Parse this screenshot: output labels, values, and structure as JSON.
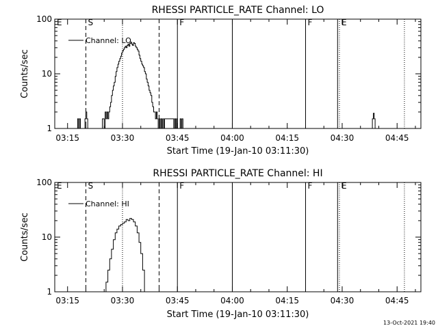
{
  "footer": {
    "timestamp": "13-Oct-2021 19:40"
  },
  "chart_data": [
    {
      "type": "line",
      "title": "RHESSI PARTICLE_RATE Channel: LO",
      "xlabel": "Start Time (19-Jan-10 03:11:30)",
      "ylabel": "Counts/sec",
      "yscale": "log",
      "ylim": [
        1,
        100
      ],
      "xlim": [
        "03:11:30",
        "04:51:30"
      ],
      "x_ticks": [
        "03:15",
        "03:30",
        "03:45",
        "04:00",
        "04:15",
        "04:30",
        "04:45"
      ],
      "y_ticks": [
        "1",
        "10",
        "100"
      ],
      "legend": {
        "label": "Channel: LO",
        "position": "top-left"
      },
      "series": [
        {
          "name": "Channel: LO",
          "x": [
            "03:17:30",
            "03:17:45",
            "03:18:00",
            "03:18:15",
            "03:18:30",
            "03:18:45",
            "03:19:00",
            "03:19:15",
            "03:19:30",
            "03:19:45",
            "03:20:00",
            "03:20:15",
            "03:20:30",
            "03:21:00",
            "03:21:30",
            "03:21:45",
            "03:22:00",
            "03:22:15",
            "03:22:30",
            "03:22:45",
            "03:23:00",
            "03:23:15",
            "03:23:30",
            "03:24:00",
            "03:24:30",
            "03:25:00",
            "03:25:15",
            "03:25:30",
            "03:25:45",
            "03:26:00",
            "03:26:15",
            "03:26:30",
            "03:26:45",
            "03:27:00",
            "03:27:15",
            "03:27:30",
            "03:27:45",
            "03:28:00",
            "03:28:15",
            "03:28:30",
            "03:28:45",
            "03:29:00",
            "03:29:15",
            "03:29:30",
            "03:29:45",
            "03:30:00",
            "03:30:15",
            "03:30:30",
            "03:30:45",
            "03:31:00",
            "03:31:15",
            "03:31:30",
            "03:31:45",
            "03:32:00",
            "03:32:15",
            "03:32:30",
            "03:32:45",
            "03:33:00",
            "03:33:15",
            "03:33:30",
            "03:33:45",
            "03:34:00",
            "03:34:15",
            "03:34:30",
            "03:34:45",
            "03:35:00",
            "03:35:15",
            "03:35:30",
            "03:35:45",
            "03:36:00",
            "03:36:15",
            "03:36:30",
            "03:36:45",
            "03:37:00",
            "03:37:15",
            "03:37:30",
            "03:37:45",
            "03:38:00",
            "03:38:15",
            "03:38:30",
            "03:38:45",
            "03:39:00",
            "03:39:15",
            "03:39:30",
            "03:39:45",
            "03:40:00",
            "03:40:15",
            "03:40:30",
            "03:40:45",
            "03:41:00",
            "03:41:15",
            "03:41:30",
            "03:44:00",
            "03:44:15",
            "03:44:30",
            "03:44:45",
            "03:45:00",
            "03:45:15",
            "03:45:30",
            "03:45:45",
            "03:46:00",
            "03:46:15",
            "03:46:30",
            "03:46:45",
            "03:47:00",
            "03:47:15",
            "04:38:00",
            "04:38:15",
            "04:38:30",
            "04:38:45",
            "04:39:00"
          ],
          "values": [
            1,
            1.5,
            1,
            1.5,
            1,
            1,
            1,
            1,
            1,
            1.5,
            2,
            1.5,
            1,
            1,
            1,
            1,
            1,
            1,
            1,
            1,
            1,
            1,
            1,
            1,
            1.5,
            1,
            2,
            1.5,
            2,
            1.5,
            2,
            2.5,
            3,
            4,
            5,
            6,
            7,
            9,
            11,
            13,
            15,
            17,
            19,
            21,
            24,
            26,
            28,
            30,
            32,
            30,
            33,
            35,
            32,
            36,
            38,
            35,
            33,
            37,
            36,
            32,
            30,
            28,
            26,
            22,
            19,
            17,
            15,
            14,
            13,
            11,
            10,
            8,
            7,
            6,
            5,
            4.5,
            4,
            3,
            2.5,
            2,
            2,
            1.5,
            2,
            1.5,
            1,
            1.5,
            1,
            1.5,
            1,
            1.5,
            1,
            1.5,
            1,
            1.5,
            1,
            1.5,
            1,
            1,
            1,
            1.5,
            1,
            1.5,
            1,
            1,
            1,
            1,
            1,
            1.5,
            1.9,
            1.5,
            1
          ]
        }
      ],
      "markers": [
        {
          "label": "E",
          "time": "03:11:30",
          "style": "solid"
        },
        {
          "label": "S",
          "time": "03:20:00",
          "style": "dashed"
        },
        {
          "label": "",
          "time": "03:30:00",
          "style": "dotted"
        },
        {
          "label": "",
          "time": "03:40:00",
          "style": "dashed"
        },
        {
          "label": "F",
          "time": "03:45:00",
          "style": "solid"
        },
        {
          "label": "",
          "time": "04:00:00",
          "style": "solid"
        },
        {
          "label": "F",
          "time": "04:20:00",
          "style": "solid"
        },
        {
          "label": "",
          "time": "04:28:45",
          "style": "solid"
        },
        {
          "label": "E",
          "time": "04:29:15",
          "style": "dotted"
        },
        {
          "label": "",
          "time": "04:47:00",
          "style": "dotted"
        }
      ]
    },
    {
      "type": "line",
      "title": "RHESSI PARTICLE_RATE Channel: HI",
      "xlabel": "Start Time (19-Jan-10 03:11:30)",
      "ylabel": "Counts/sec",
      "yscale": "log",
      "ylim": [
        1,
        100
      ],
      "xlim": [
        "03:11:30",
        "04:51:30"
      ],
      "x_ticks": [
        "03:15",
        "03:30",
        "03:45",
        "04:00",
        "04:15",
        "04:30",
        "04:45"
      ],
      "y_ticks": [
        "1",
        "10",
        "100"
      ],
      "legend": {
        "label": "Channel: HI",
        "position": "top-left"
      },
      "series": [
        {
          "name": "Channel: HI",
          "x": [
            "03:25:00",
            "03:25:30",
            "03:26:00",
            "03:26:30",
            "03:27:00",
            "03:27:30",
            "03:28:00",
            "03:28:30",
            "03:29:00",
            "03:29:30",
            "03:30:00",
            "03:30:30",
            "03:31:00",
            "03:31:30",
            "03:32:00",
            "03:32:30",
            "03:33:00",
            "03:33:30",
            "03:34:00",
            "03:34:30",
            "03:35:00",
            "03:35:30",
            "03:36:00"
          ],
          "values": [
            1,
            1.5,
            2.5,
            4,
            6,
            9,
            12,
            14,
            16,
            17,
            18,
            19,
            21,
            20,
            22,
            21,
            19,
            16,
            12,
            8,
            5,
            2.5,
            1
          ]
        }
      ],
      "markers": [
        {
          "label": "E",
          "time": "03:11:30",
          "style": "solid"
        },
        {
          "label": "S",
          "time": "03:20:00",
          "style": "dashed"
        },
        {
          "label": "",
          "time": "03:30:00",
          "style": "dotted"
        },
        {
          "label": "",
          "time": "03:40:00",
          "style": "dashed"
        },
        {
          "label": "F",
          "time": "03:45:00",
          "style": "solid"
        },
        {
          "label": "",
          "time": "04:00:00",
          "style": "solid"
        },
        {
          "label": "F",
          "time": "04:20:00",
          "style": "solid"
        },
        {
          "label": "",
          "time": "04:28:45",
          "style": "solid"
        },
        {
          "label": "E",
          "time": "04:29:15",
          "style": "dotted"
        },
        {
          "label": "",
          "time": "04:47:00",
          "style": "dotted"
        }
      ]
    }
  ]
}
